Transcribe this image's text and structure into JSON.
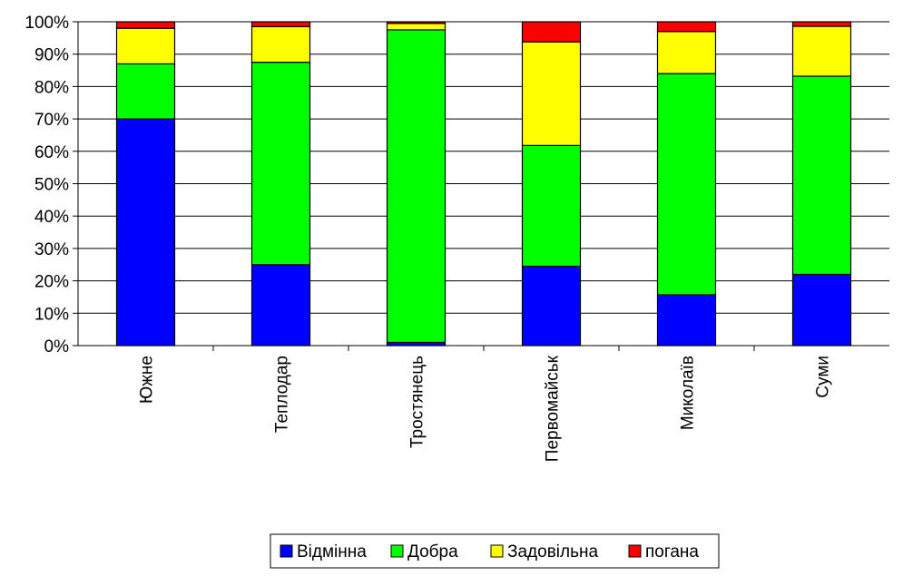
{
  "chart_data": {
    "type": "bar",
    "stacked": true,
    "percent": true,
    "categories": [
      "Южне",
      "Теплодар",
      "Тростянець",
      "Первомайськ",
      "Миколаїв",
      "Суми"
    ],
    "series": [
      {
        "name": "Відмінна",
        "color": "#0000ff",
        "values": [
          70,
          25,
          1,
          24.5,
          15.7,
          22
        ]
      },
      {
        "name": "Добра",
        "color": "#00ff00",
        "values": [
          17,
          62.5,
          96.5,
          37.3,
          68.3,
          61.2
        ]
      },
      {
        "name": "Задовільна",
        "color": "#ffff00",
        "values": [
          11,
          11,
          2,
          32,
          13,
          15.4
        ]
      },
      {
        "name": "погана",
        "color": "#ff0000",
        "values": [
          2,
          1.5,
          0.5,
          6.2,
          3,
          1.4
        ]
      }
    ],
    "yticks": [
      "0%",
      "10%",
      "20%",
      "30%",
      "40%",
      "50%",
      "60%",
      "70%",
      "80%",
      "90%",
      "100%"
    ],
    "ylim": [
      0,
      100
    ],
    "grid": true,
    "legend": "bottom"
  }
}
